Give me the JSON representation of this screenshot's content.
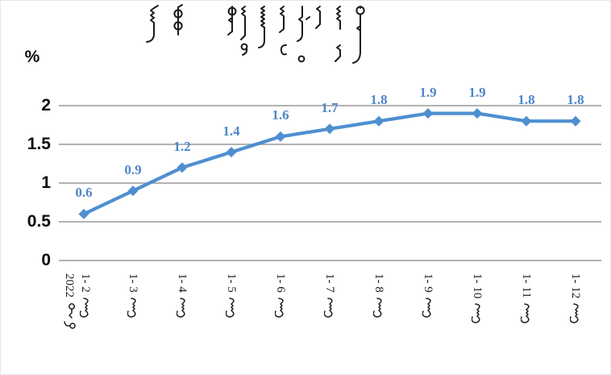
{
  "chart_data": {
    "type": "line",
    "title": "ᠪᠦᠬᠦ ᠣᠷᠣᠨ ᠤ ᠬᠡᠷᠡᠭᠯᠡᠭᠡᠨ ᠦ ᠦᠨ᠎ᠡ ᠶᠢᠨ ᠨᠡᠶᠢᠯᠡᠪᠦᠷᠢ ᠥᠰᠦᠯᠲᠡ ᠶᠢᠨ ᠬᠤᠷᠳᠤᠴᠠ",
    "title_script": "mongolian-vertical",
    "ylabel": "%",
    "categories": [
      {
        "num": "1- 2",
        "month_word": "ᠰᠠᠷ᠎ᠠ",
        "year_line": {
          "num": "2022",
          "year_word": "ᠣᠨ ᠤ"
        }
      },
      {
        "num": "1- 3",
        "month_word": "ᠰᠠᠷ᠎ᠠ"
      },
      {
        "num": "1- 4",
        "month_word": "ᠰᠠᠷ᠎ᠠ"
      },
      {
        "num": "1- 5",
        "month_word": "ᠰᠠᠷ᠎ᠠ"
      },
      {
        "num": "1- 6",
        "month_word": "ᠰᠠᠷ᠎ᠠ"
      },
      {
        "num": "1- 7",
        "month_word": "ᠰᠠᠷ᠎ᠠ"
      },
      {
        "num": "1- 8",
        "month_word": "ᠰᠠᠷ᠎ᠠ"
      },
      {
        "num": "1- 9",
        "month_word": "ᠰᠠᠷ᠎ᠠ"
      },
      {
        "num": "1- 10",
        "month_word": "ᠰᠠᠷ᠎ᠠ"
      },
      {
        "num": "1- 11",
        "month_word": "ᠰᠠᠷ᠎ᠠ"
      },
      {
        "num": "1- 12",
        "month_word": "ᠰᠠᠷ᠎ᠠ"
      }
    ],
    "values": [
      0.6,
      0.9,
      1.2,
      1.4,
      1.6,
      1.7,
      1.8,
      1.9,
      1.9,
      1.8,
      1.8
    ],
    "data_labels": [
      "0.6",
      "0.9",
      "1.2",
      "1.4",
      "1.6",
      "1.7",
      "1.8",
      "1.9",
      "1.9",
      "1.8",
      "1.8"
    ],
    "yticks": [
      "0",
      "0.5",
      "1",
      "1.5",
      "2"
    ],
    "ylim": [
      0,
      2
    ],
    "grid": true,
    "legend": "none",
    "marker": "diamond",
    "line_color": "#4E8FD0",
    "data_label_color": "#4E86C8",
    "grid_color": "#9A9A9A",
    "axis_text_color": "#0d0d0d"
  }
}
